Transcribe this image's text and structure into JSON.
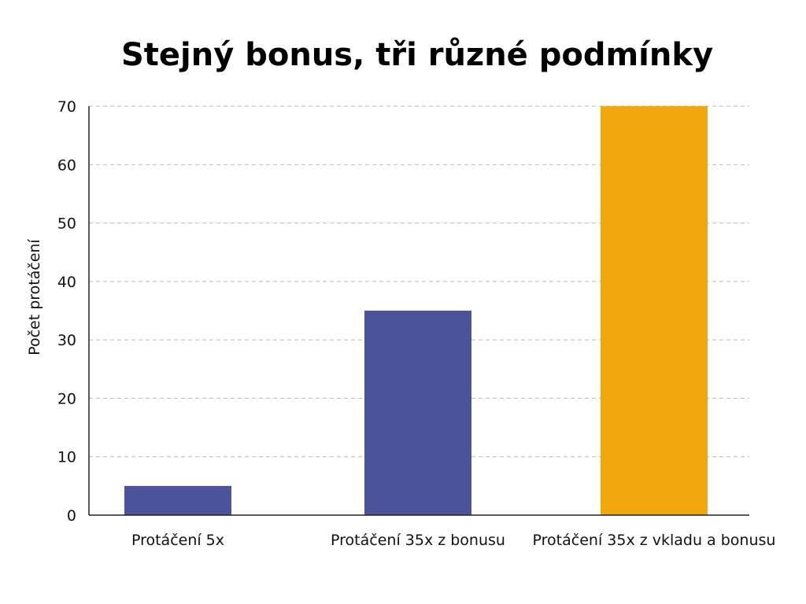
{
  "chart_data": {
    "type": "bar",
    "title": "Stejný bonus, tři různé podmínky",
    "xlabel": "",
    "ylabel": "Počet protáčení",
    "categories": [
      "Protáčení 5x",
      "Protáčení 35x z bonusu",
      "Protáčení 35x z vkladu a bonusu"
    ],
    "values": [
      5,
      35,
      70
    ],
    "bar_colors": [
      "#4b549a",
      "#4b549a",
      "#f0a70b"
    ],
    "ylim": [
      0,
      70
    ],
    "yticks": [
      0,
      10,
      20,
      30,
      40,
      50,
      60,
      70
    ],
    "grid": true,
    "legend": "none"
  }
}
